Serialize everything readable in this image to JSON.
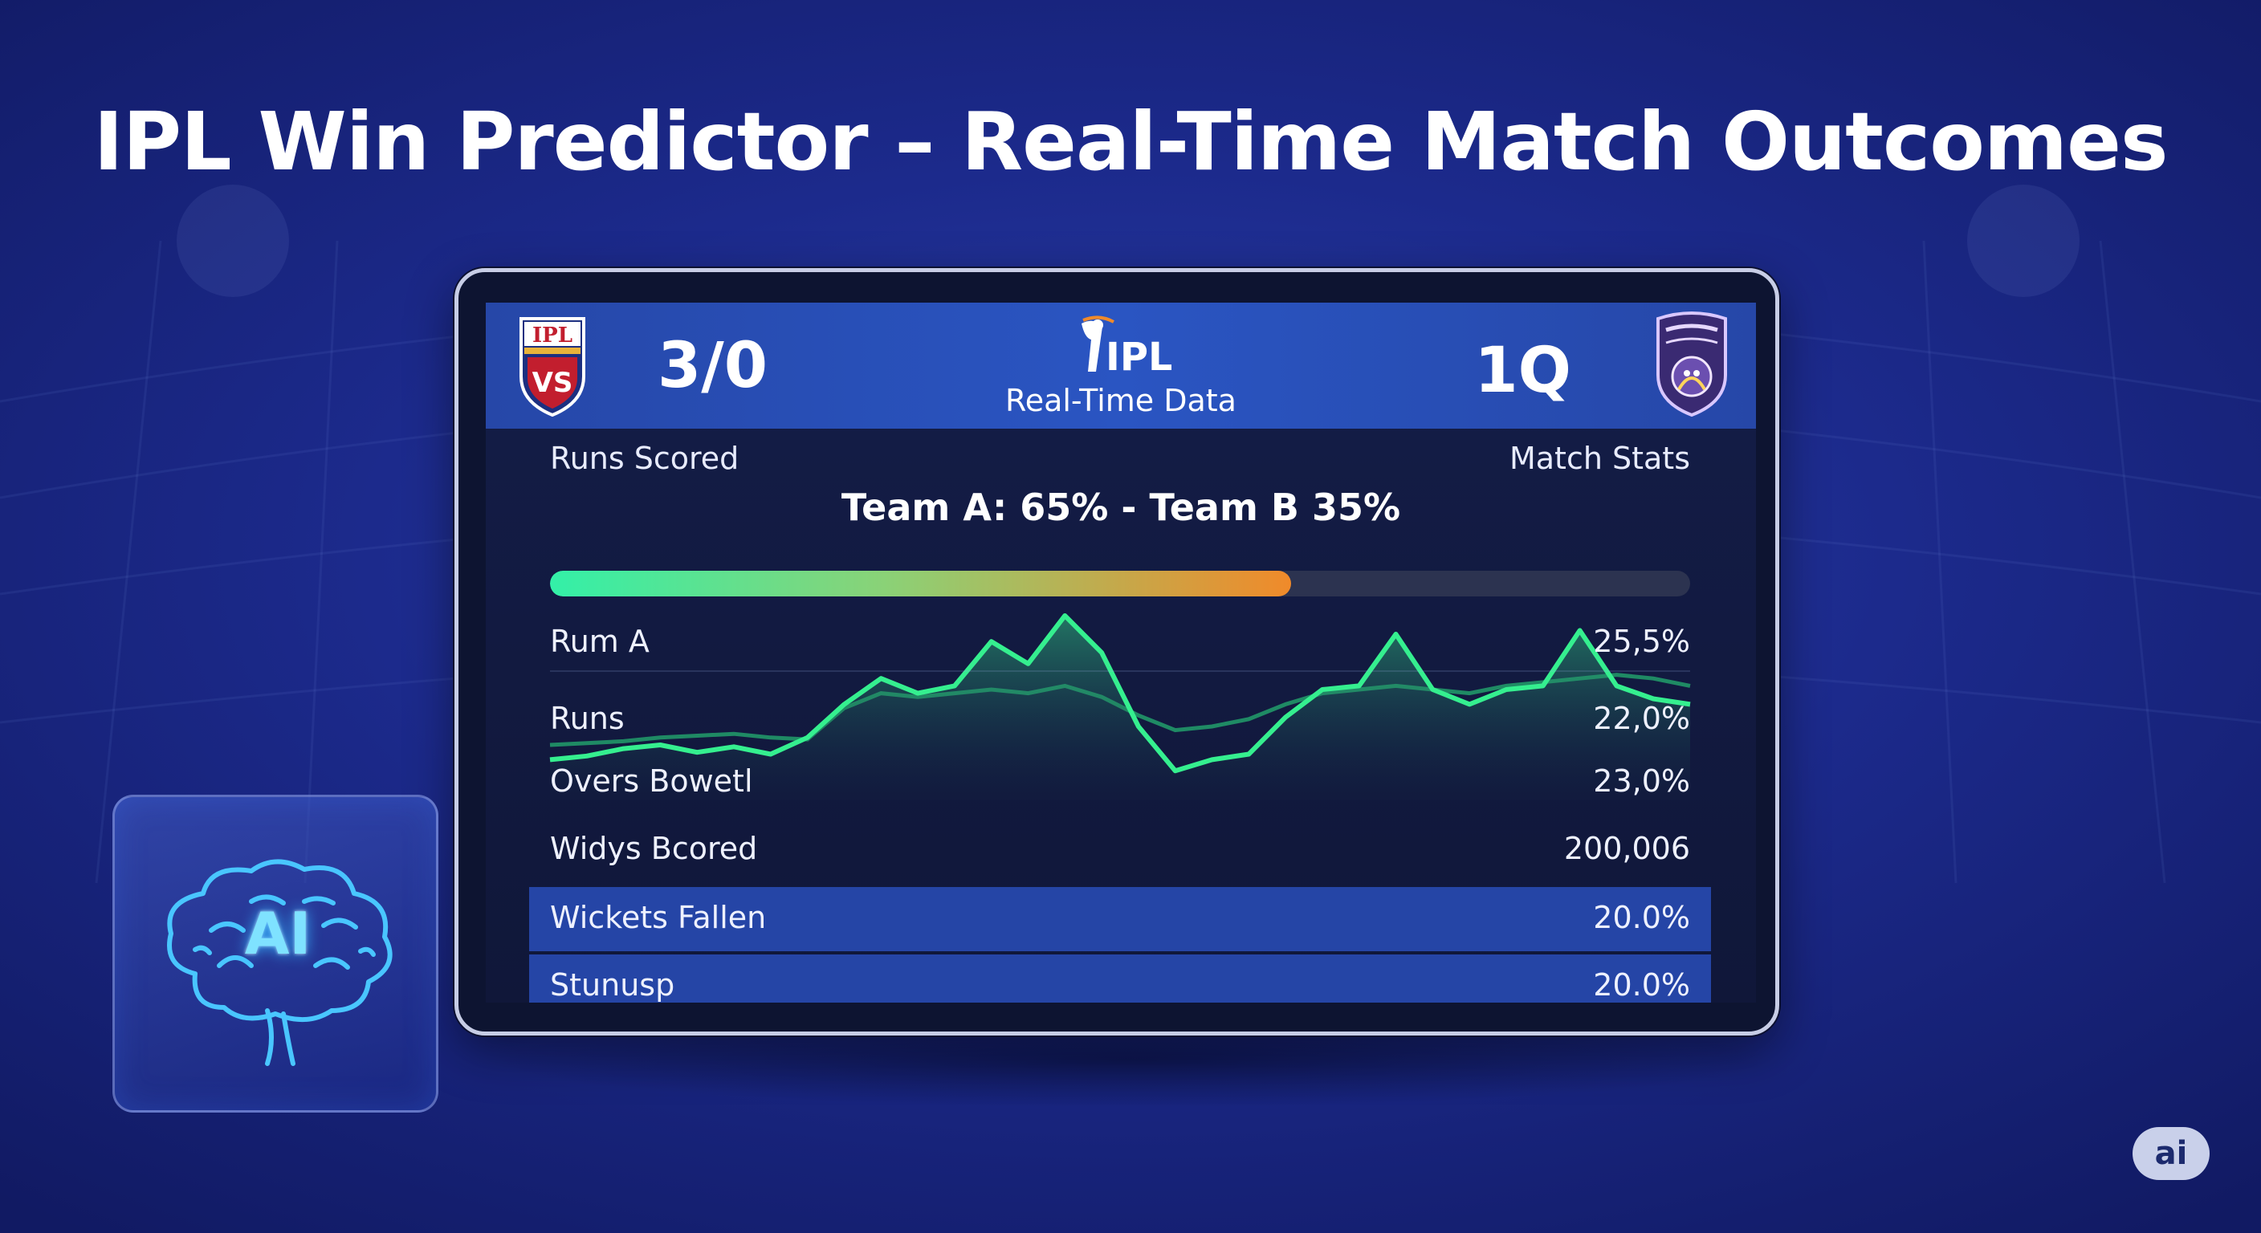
{
  "page": {
    "title": "IPL Win Predictor – Real-Time Match Outcomes",
    "corner_badge": "ai",
    "colors": {
      "background": "#1c2a8c",
      "banner": "#2a55c2",
      "highlight_row": "#2545a6",
      "chart_line": "#35ef8f",
      "bar_start": "#33f0a8",
      "bar_end": "#f08a2a"
    }
  },
  "scoreboard": {
    "left_badge_text": "IPL",
    "left_badge_vs": "VS",
    "left_score": "3/0",
    "center_logo_text": "IPL",
    "center_label": "Real-Time Data",
    "right_score": "1Q",
    "right_badge_icon": "team-crest-icon"
  },
  "labels": {
    "runs_scored": "Runs Scored",
    "match_stats": "Match Stats",
    "win_probability": "Team A: 65% - Team B 35%"
  },
  "win_probability": {
    "team_a_percent": 65,
    "team_b_percent": 35
  },
  "stats": [
    {
      "label": "Rum A",
      "value": "25,5%"
    },
    {
      "label": "Runs",
      "value": "22,0%"
    },
    {
      "label": "Overs Bowetl",
      "value": "23,0%"
    },
    {
      "label": "Widys Bcored",
      "value": "200,006"
    }
  ],
  "highlight_stats": [
    {
      "label": "Wickets Fallen",
      "value": "20.0%"
    },
    {
      "label": "Stunusp",
      "value": "20.0%"
    }
  ],
  "ai_card": {
    "text": "AI",
    "icon": "brain-icon"
  },
  "chart_data": {
    "type": "line",
    "series": [
      {
        "values": [
          22,
          24,
          28,
          30,
          26,
          29,
          25,
          34,
          52,
          66,
          58,
          62,
          86,
          74,
          100,
          80,
          40,
          16,
          22,
          25,
          45,
          60,
          62,
          90,
          60,
          52,
          60,
          62,
          92,
          62,
          55,
          52
        ]
      },
      {
        "values": [
          30,
          31,
          32,
          34,
          35,
          36,
          34,
          33,
          50,
          58,
          56,
          58,
          60,
          58,
          62,
          56,
          46,
          38,
          40,
          44,
          52,
          58,
          60,
          62,
          60,
          58,
          62,
          64,
          66,
          68,
          66,
          62
        ]
      }
    ],
    "ylim": [
      0,
      100
    ],
    "grid": false
  }
}
